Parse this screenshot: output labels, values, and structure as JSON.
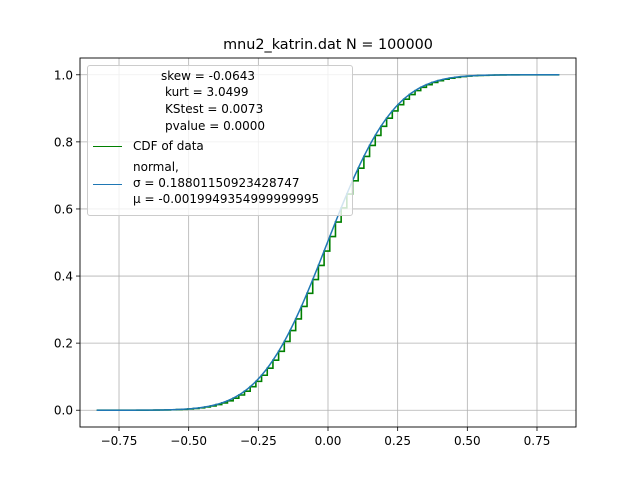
{
  "chart_data": {
    "type": "line",
    "title": "mnu2_katrin.dat  N = 100000",
    "xlabel": "",
    "ylabel": "",
    "xlim": [
      -0.89,
      0.89
    ],
    "ylim": [
      -0.05,
      1.05
    ],
    "x_ticks": [
      -0.75,
      -0.5,
      -0.25,
      0.0,
      0.25,
      0.5,
      0.75
    ],
    "x_tick_labels": [
      "−0.75",
      "−0.50",
      "−0.25",
      "0.00",
      "0.25",
      "0.50",
      "0.75"
    ],
    "y_ticks": [
      0.0,
      0.2,
      0.4,
      0.6,
      0.8,
      1.0
    ],
    "y_tick_labels": [
      "0.0",
      "0.2",
      "0.4",
      "0.6",
      "0.8",
      "1.0"
    ],
    "grid": true,
    "legend_position": "upper-left",
    "stats": {
      "skew": "skew = -0.0643",
      "kurt": "kurt = 3.0499",
      "kstest": "KStest = 0.0073",
      "pvalue": "pvalue = 0.0000"
    },
    "series": [
      {
        "name": "CDF of data",
        "color": "#008000",
        "style": "step",
        "x_range": [
          -0.83,
          0.83
        ],
        "x_step": 0.0204
      },
      {
        "name": "normal,",
        "sigma_label": "σ = 0.18801150923428747",
        "mu_label": "μ = -0.0019949354999999995",
        "color": "#1f77b4",
        "style": "line",
        "sigma": 0.18801150923428747,
        "mu": -0.0019949354999999995,
        "x_range": [
          -0.83,
          0.83
        ]
      }
    ]
  }
}
